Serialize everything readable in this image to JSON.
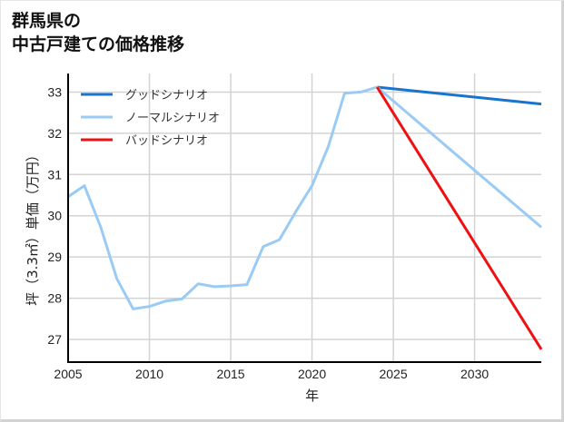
{
  "title": {
    "line1": "群馬県の",
    "line2": "中古戸建ての価格推移"
  },
  "colors": {
    "good": "#1874CD",
    "normal": "#9ACBF5",
    "bad": "#EE1111",
    "grid": "#D3D3D3",
    "axis": "#000000"
  },
  "chart_data": {
    "type": "line",
    "title": "群馬県の中古戸建ての価格推移",
    "xlabel": "年",
    "ylabel": "坪（3.3㎡）単価（万円）",
    "xlim": [
      2005,
      2034.1
    ],
    "ylim": [
      26.45,
      33.45
    ],
    "xticks": [
      2005,
      2010,
      2015,
      2020,
      2025,
      2030
    ],
    "yticks": [
      27,
      28,
      29,
      30,
      31,
      32,
      33
    ],
    "grid": true,
    "legend_position": "upper left",
    "series": [
      {
        "name": "グッドシナリオ",
        "key": "good",
        "x": [
          2024,
          2034.1
        ],
        "y": [
          33.12,
          32.71
        ]
      },
      {
        "name": "ノーマルシナリオ",
        "key": "normal",
        "x": [
          2005,
          2006,
          2007,
          2008,
          2009,
          2010,
          2011,
          2012,
          2013,
          2014,
          2015,
          2016,
          2017,
          2018,
          2019,
          2020,
          2021,
          2022,
          2023,
          2024,
          2034.1
        ],
        "y": [
          30.46,
          30.73,
          29.73,
          28.47,
          27.74,
          27.8,
          27.93,
          27.98,
          28.35,
          28.28,
          28.3,
          28.33,
          29.25,
          29.42,
          30.1,
          30.73,
          31.68,
          32.97,
          33.0,
          33.12,
          29.72
        ]
      },
      {
        "name": "バッドシナリオ",
        "key": "bad",
        "x": [
          2024,
          2034.1
        ],
        "y": [
          33.12,
          26.76
        ]
      }
    ]
  }
}
